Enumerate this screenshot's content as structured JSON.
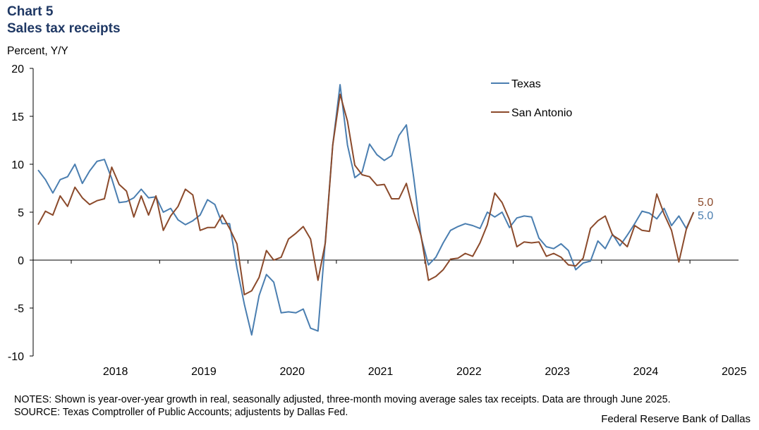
{
  "chart_label": "Chart 5",
  "title": "Sales tax receipts",
  "unit_label": "Percent, Y/Y",
  "notes": "NOTES: Shown is year-over-year growth in real, seasonally adjusted, three-month moving average sales tax receipts. Data are through  June 2025.",
  "source": "SOURCE: Texas Comptroller of Public Accounts; adjustents by Dallas Fed.",
  "credit": "Federal Reserve Bank of Dallas",
  "colors": {
    "texas": "#4a7eb0",
    "san_antonio": "#8b4a2b",
    "title": "#1f3864"
  },
  "chart_data": {
    "type": "line",
    "ylabel": "Percent, Y/Y",
    "ylim": [
      -10,
      20
    ],
    "yticks": [
      "20",
      "15",
      "10",
      "5",
      "0",
      "-5",
      "-10"
    ],
    "x_start": "2017-08",
    "x_end": "2025-06",
    "x_labels": [
      "2018",
      "2019",
      "2020",
      "2021",
      "2022",
      "2023",
      "2024",
      "2025"
    ],
    "legend_position": "top-right",
    "grid": false,
    "series": [
      {
        "name": "Texas",
        "end_label": "5.0",
        "values": [
          9.4,
          8.4,
          7.0,
          8.4,
          8.7,
          10.0,
          8.0,
          9.3,
          10.3,
          10.5,
          8.5,
          6.0,
          6.1,
          6.5,
          7.4,
          6.5,
          6.6,
          5.0,
          5.4,
          4.2,
          3.7,
          4.1,
          4.7,
          6.3,
          5.8,
          3.8,
          3.8,
          -0.8,
          -4.6,
          -7.8,
          -3.7,
          -1.5,
          -2.3,
          -5.5,
          -5.4,
          -5.5,
          -5.1,
          -7.1,
          -7.4,
          2.0,
          12.0,
          18.3,
          12.0,
          8.6,
          9.2,
          12.1,
          11.0,
          10.4,
          10.9,
          13.0,
          14.1,
          8.6,
          2.4,
          -0.5,
          0.3,
          1.8,
          3.1,
          3.5,
          3.8,
          3.6,
          3.3,
          5.0,
          4.5,
          5.0,
          3.4,
          4.4,
          4.6,
          4.5,
          2.3,
          1.4,
          1.2,
          1.7,
          1.0,
          -1.0,
          -0.3,
          -0.1,
          2.0,
          1.2,
          2.7,
          1.5,
          2.6,
          3.8,
          5.1,
          4.9,
          4.3,
          5.4,
          3.6,
          4.6,
          3.3,
          5.0
        ]
      },
      {
        "name": "San Antonio",
        "end_label": "5.0",
        "values": [
          3.7,
          5.1,
          4.7,
          6.7,
          5.6,
          7.6,
          6.5,
          5.8,
          6.2,
          6.4,
          9.7,
          7.9,
          7.2,
          4.5,
          6.7,
          4.7,
          6.7,
          3.1,
          4.6,
          5.6,
          7.4,
          6.8,
          3.1,
          3.4,
          3.4,
          4.7,
          3.3,
          1.7,
          -3.6,
          -3.2,
          -1.8,
          1.0,
          0.0,
          0.3,
          2.2,
          2.8,
          3.5,
          2.2,
          -2.1,
          1.8,
          12.0,
          17.3,
          14.5,
          9.9,
          8.9,
          8.7,
          7.8,
          7.9,
          6.4,
          6.4,
          8.0,
          5.0,
          2.5,
          -2.1,
          -1.7,
          -1.0,
          0.1,
          0.2,
          0.7,
          0.4,
          1.8,
          3.7,
          7.0,
          6.0,
          4.2,
          1.4,
          1.9,
          1.8,
          1.9,
          0.4,
          0.7,
          0.3,
          -0.5,
          -0.6,
          0.2,
          3.3,
          4.1,
          4.6,
          2.6,
          2.1,
          1.4,
          3.6,
          3.1,
          3.0,
          6.9,
          4.8,
          3.1,
          -0.2,
          3.2,
          5.0
        ]
      }
    ]
  }
}
